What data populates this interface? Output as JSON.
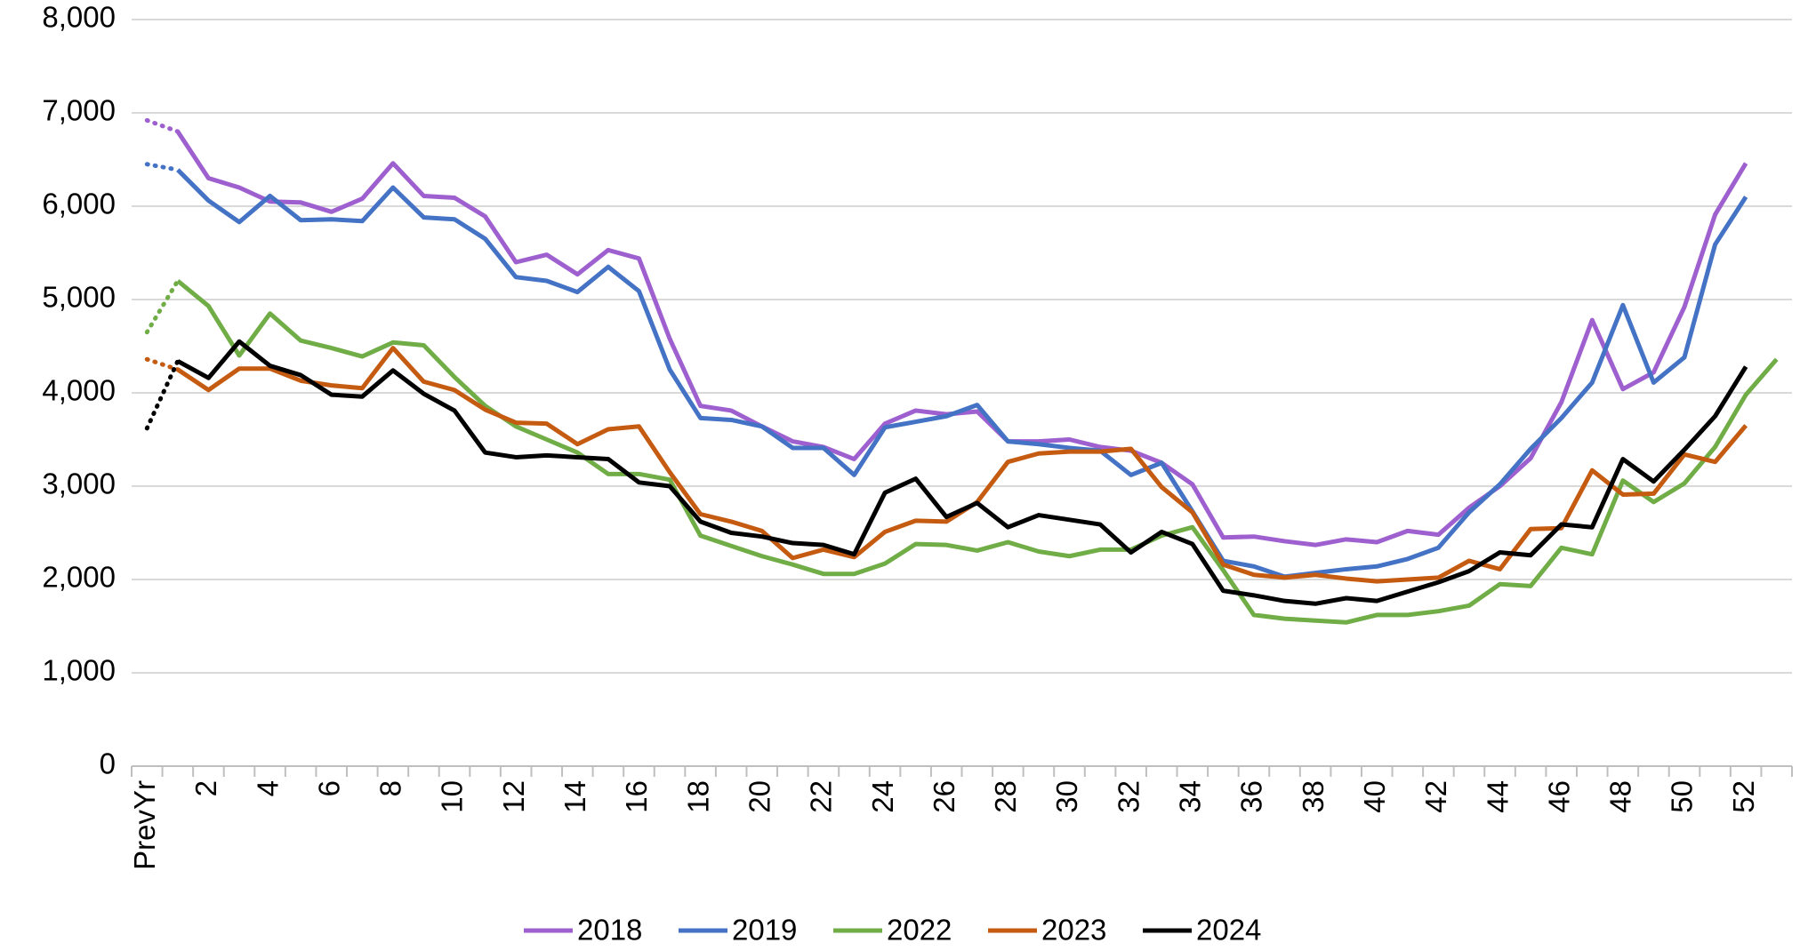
{
  "chart_data": {
    "type": "line",
    "categories": [
      "PrevYr",
      null,
      "2",
      null,
      "4",
      null,
      "6",
      null,
      "8",
      null,
      "10",
      null,
      "12",
      null,
      "14",
      null,
      "16",
      null,
      "18",
      null,
      "20",
      null,
      "22",
      null,
      "24",
      null,
      "26",
      null,
      "28",
      null,
      "30",
      null,
      "32",
      null,
      "34",
      null,
      "36",
      null,
      "38",
      null,
      "40",
      null,
      "42",
      null,
      "44",
      null,
      "46",
      null,
      "48",
      null,
      "50",
      null,
      "52",
      null
    ],
    "series": [
      {
        "name": "2018",
        "color": "#9e5fcf",
        "values": [
          6920,
          6800,
          6300,
          6200,
          6050,
          6040,
          5940,
          6080,
          6460,
          6110,
          6090,
          5890,
          5400,
          5480,
          5270,
          5530,
          5440,
          4580,
          3860,
          3810,
          3640,
          3480,
          3420,
          3290,
          3670,
          3810,
          3770,
          3800,
          3480,
          3480,
          3500,
          3420,
          3380,
          3250,
          3020,
          2450,
          2460,
          2410,
          2370,
          2430,
          2400,
          2520,
          2480,
          2770,
          3000,
          3300,
          3900,
          4780,
          4040,
          4220,
          4920,
          5910,
          6460,
          null
        ]
      },
      {
        "name": "2019",
        "color": "#4472c4",
        "values": [
          6450,
          6390,
          6060,
          5830,
          6110,
          5850,
          5860,
          5840,
          6200,
          5880,
          5860,
          5650,
          5240,
          5200,
          5080,
          5350,
          5090,
          4250,
          3730,
          3710,
          3640,
          3410,
          3410,
          3120,
          3630,
          3690,
          3750,
          3870,
          3480,
          3450,
          3410,
          3380,
          3120,
          3250,
          2730,
          2200,
          2140,
          2030,
          2070,
          2110,
          2140,
          2220,
          2340,
          2720,
          3020,
          3400,
          3730,
          4110,
          4940,
          4110,
          4380,
          5590,
          6100,
          null
        ]
      },
      {
        "name": "2022",
        "color": "#70ad47",
        "values": [
          4650,
          5200,
          4930,
          4400,
          4850,
          4560,
          4480,
          4390,
          4540,
          4510,
          4170,
          3860,
          3640,
          3500,
          3360,
          3130,
          3130,
          3070,
          2470,
          2360,
          2250,
          2160,
          2060,
          2060,
          2170,
          2380,
          2370,
          2310,
          2400,
          2300,
          2250,
          2320,
          2320,
          2470,
          2560,
          2100,
          1620,
          1580,
          1560,
          1540,
          1620,
          1620,
          1660,
          1720,
          1950,
          1930,
          2340,
          2270,
          3060,
          2830,
          3030,
          3420,
          3980,
          4360
        ]
      },
      {
        "name": "2023",
        "color": "#c55a11",
        "values": [
          4360,
          4250,
          4030,
          4260,
          4260,
          4130,
          4080,
          4050,
          4480,
          4120,
          4030,
          3820,
          3680,
          3670,
          3450,
          3610,
          3640,
          3150,
          2700,
          2620,
          2520,
          2230,
          2320,
          2240,
          2510,
          2630,
          2620,
          2830,
          3260,
          3350,
          3370,
          3370,
          3400,
          2990,
          2720,
          2160,
          2050,
          2020,
          2050,
          2010,
          1980,
          2000,
          2020,
          2200,
          2110,
          2540,
          2550,
          3170,
          2910,
          2920,
          3340,
          3260,
          3650,
          null
        ]
      },
      {
        "name": "2024",
        "color": "#000000",
        "values": [
          3620,
          4340,
          4160,
          4550,
          4290,
          4190,
          3980,
          3960,
          4240,
          3990,
          3810,
          3360,
          3310,
          3330,
          3310,
          3290,
          3040,
          3000,
          2620,
          2500,
          2460,
          2390,
          2370,
          2270,
          2930,
          3080,
          2670,
          2820,
          2560,
          2690,
          2640,
          2590,
          2290,
          2510,
          2380,
          1880,
          1830,
          1770,
          1740,
          1800,
          1770,
          1870,
          1970,
          2090,
          2290,
          2260,
          2590,
          2560,
          3290,
          3050,
          3390,
          3750,
          4280,
          null
        ]
      }
    ],
    "ylim": [
      0,
      8000
    ],
    "yticks": [
      0,
      {
        "value": 1000,
        "label": "1,000"
      },
      {
        "value": 2000,
        "label": "2,000"
      },
      {
        "value": 3000,
        "label": "3,000"
      },
      {
        "value": 4000,
        "label": "4,000"
      },
      {
        "value": 5000,
        "label": "5,000"
      },
      {
        "value": 6000,
        "label": "6,000"
      },
      {
        "value": 7000,
        "label": "7,000"
      },
      {
        "value": 8000,
        "label": "8,000"
      }
    ],
    "grid": true,
    "legend": "bottom"
  }
}
